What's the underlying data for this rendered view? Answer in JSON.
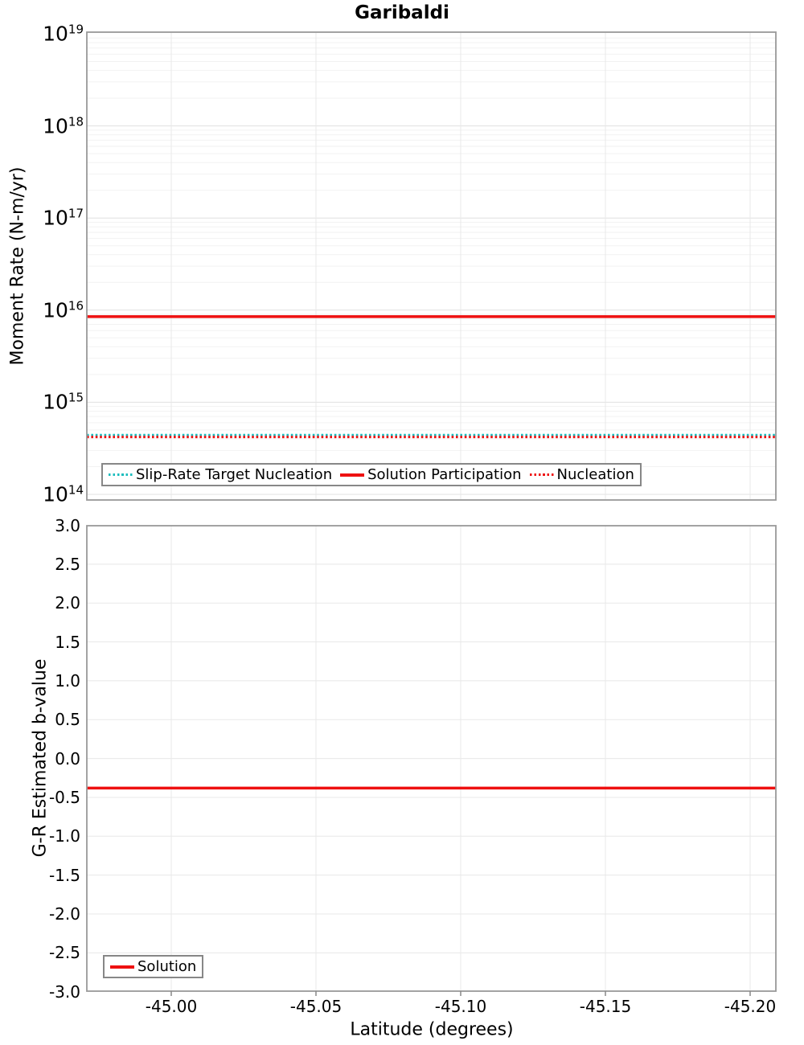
{
  "chart_data": [
    {
      "type": "line",
      "title": "Garibaldi",
      "ylabel": "Moment Rate (N-m/yr)",
      "yscale": "log",
      "ylim": [
        87000000000000.0,
        1.25e+19
      ],
      "ytick_exponents": [
        19,
        18,
        17,
        16,
        15,
        14
      ],
      "xlim": [
        -44.971,
        -45.208
      ],
      "x_axis_inverted": true,
      "grid": true,
      "legend_position": "inside-bottom-left",
      "series": [
        {
          "name": "Slip-Rate Target Nucleation",
          "color": "#1cbdbe",
          "style": "dotted",
          "y_constant": 440000000000000.0
        },
        {
          "name": "Solution Participation",
          "color": "#ee1111",
          "style": "solid",
          "y_constant": 8500000000000000.0
        },
        {
          "name": "Nucleation",
          "color": "#ee1111",
          "style": "dotted",
          "y_constant": 420000000000000.0
        }
      ]
    },
    {
      "type": "line",
      "ylabel": "G-R Estimated b-value",
      "xlabel": "Latitude (degrees)",
      "ylim": [
        -3.0,
        3.0
      ],
      "yticks": [
        3.0,
        2.5,
        2.0,
        1.5,
        1.0,
        0.5,
        0.0,
        -0.5,
        -1.0,
        -1.5,
        -2.0,
        -2.5,
        -3.0
      ],
      "ytick_labels": [
        "3.0",
        "2.5",
        "2.0",
        "1.5",
        "1.0",
        "0.5",
        "0.0",
        "-0.5",
        "-1.0",
        "-1.5",
        "-2.0",
        "-2.5",
        "-3.0"
      ],
      "xticks": [
        -45.0,
        -45.05,
        -45.1,
        -45.15,
        -45.2
      ],
      "xtick_labels": [
        "-45.00",
        "-45.05",
        "-45.10",
        "-45.15",
        "-45.20"
      ],
      "xlim": [
        -44.971,
        -45.208
      ],
      "x_axis_inverted": true,
      "grid": true,
      "legend_position": "inside-bottom-left",
      "series": [
        {
          "name": "Solution",
          "color": "#ee1111",
          "style": "solid",
          "y_constant": -0.38
        }
      ]
    }
  ],
  "colors": {
    "series_red": "#ee1111",
    "series_teal": "#1cbdbe",
    "plot_border": "#999999",
    "grid_major": "#e0e0e0",
    "grid_minor": "#f2f2f2",
    "grid_vertical": "#e8e8e8",
    "tick_mark": "#888888",
    "text": "#000000",
    "background": "#ffffff"
  }
}
